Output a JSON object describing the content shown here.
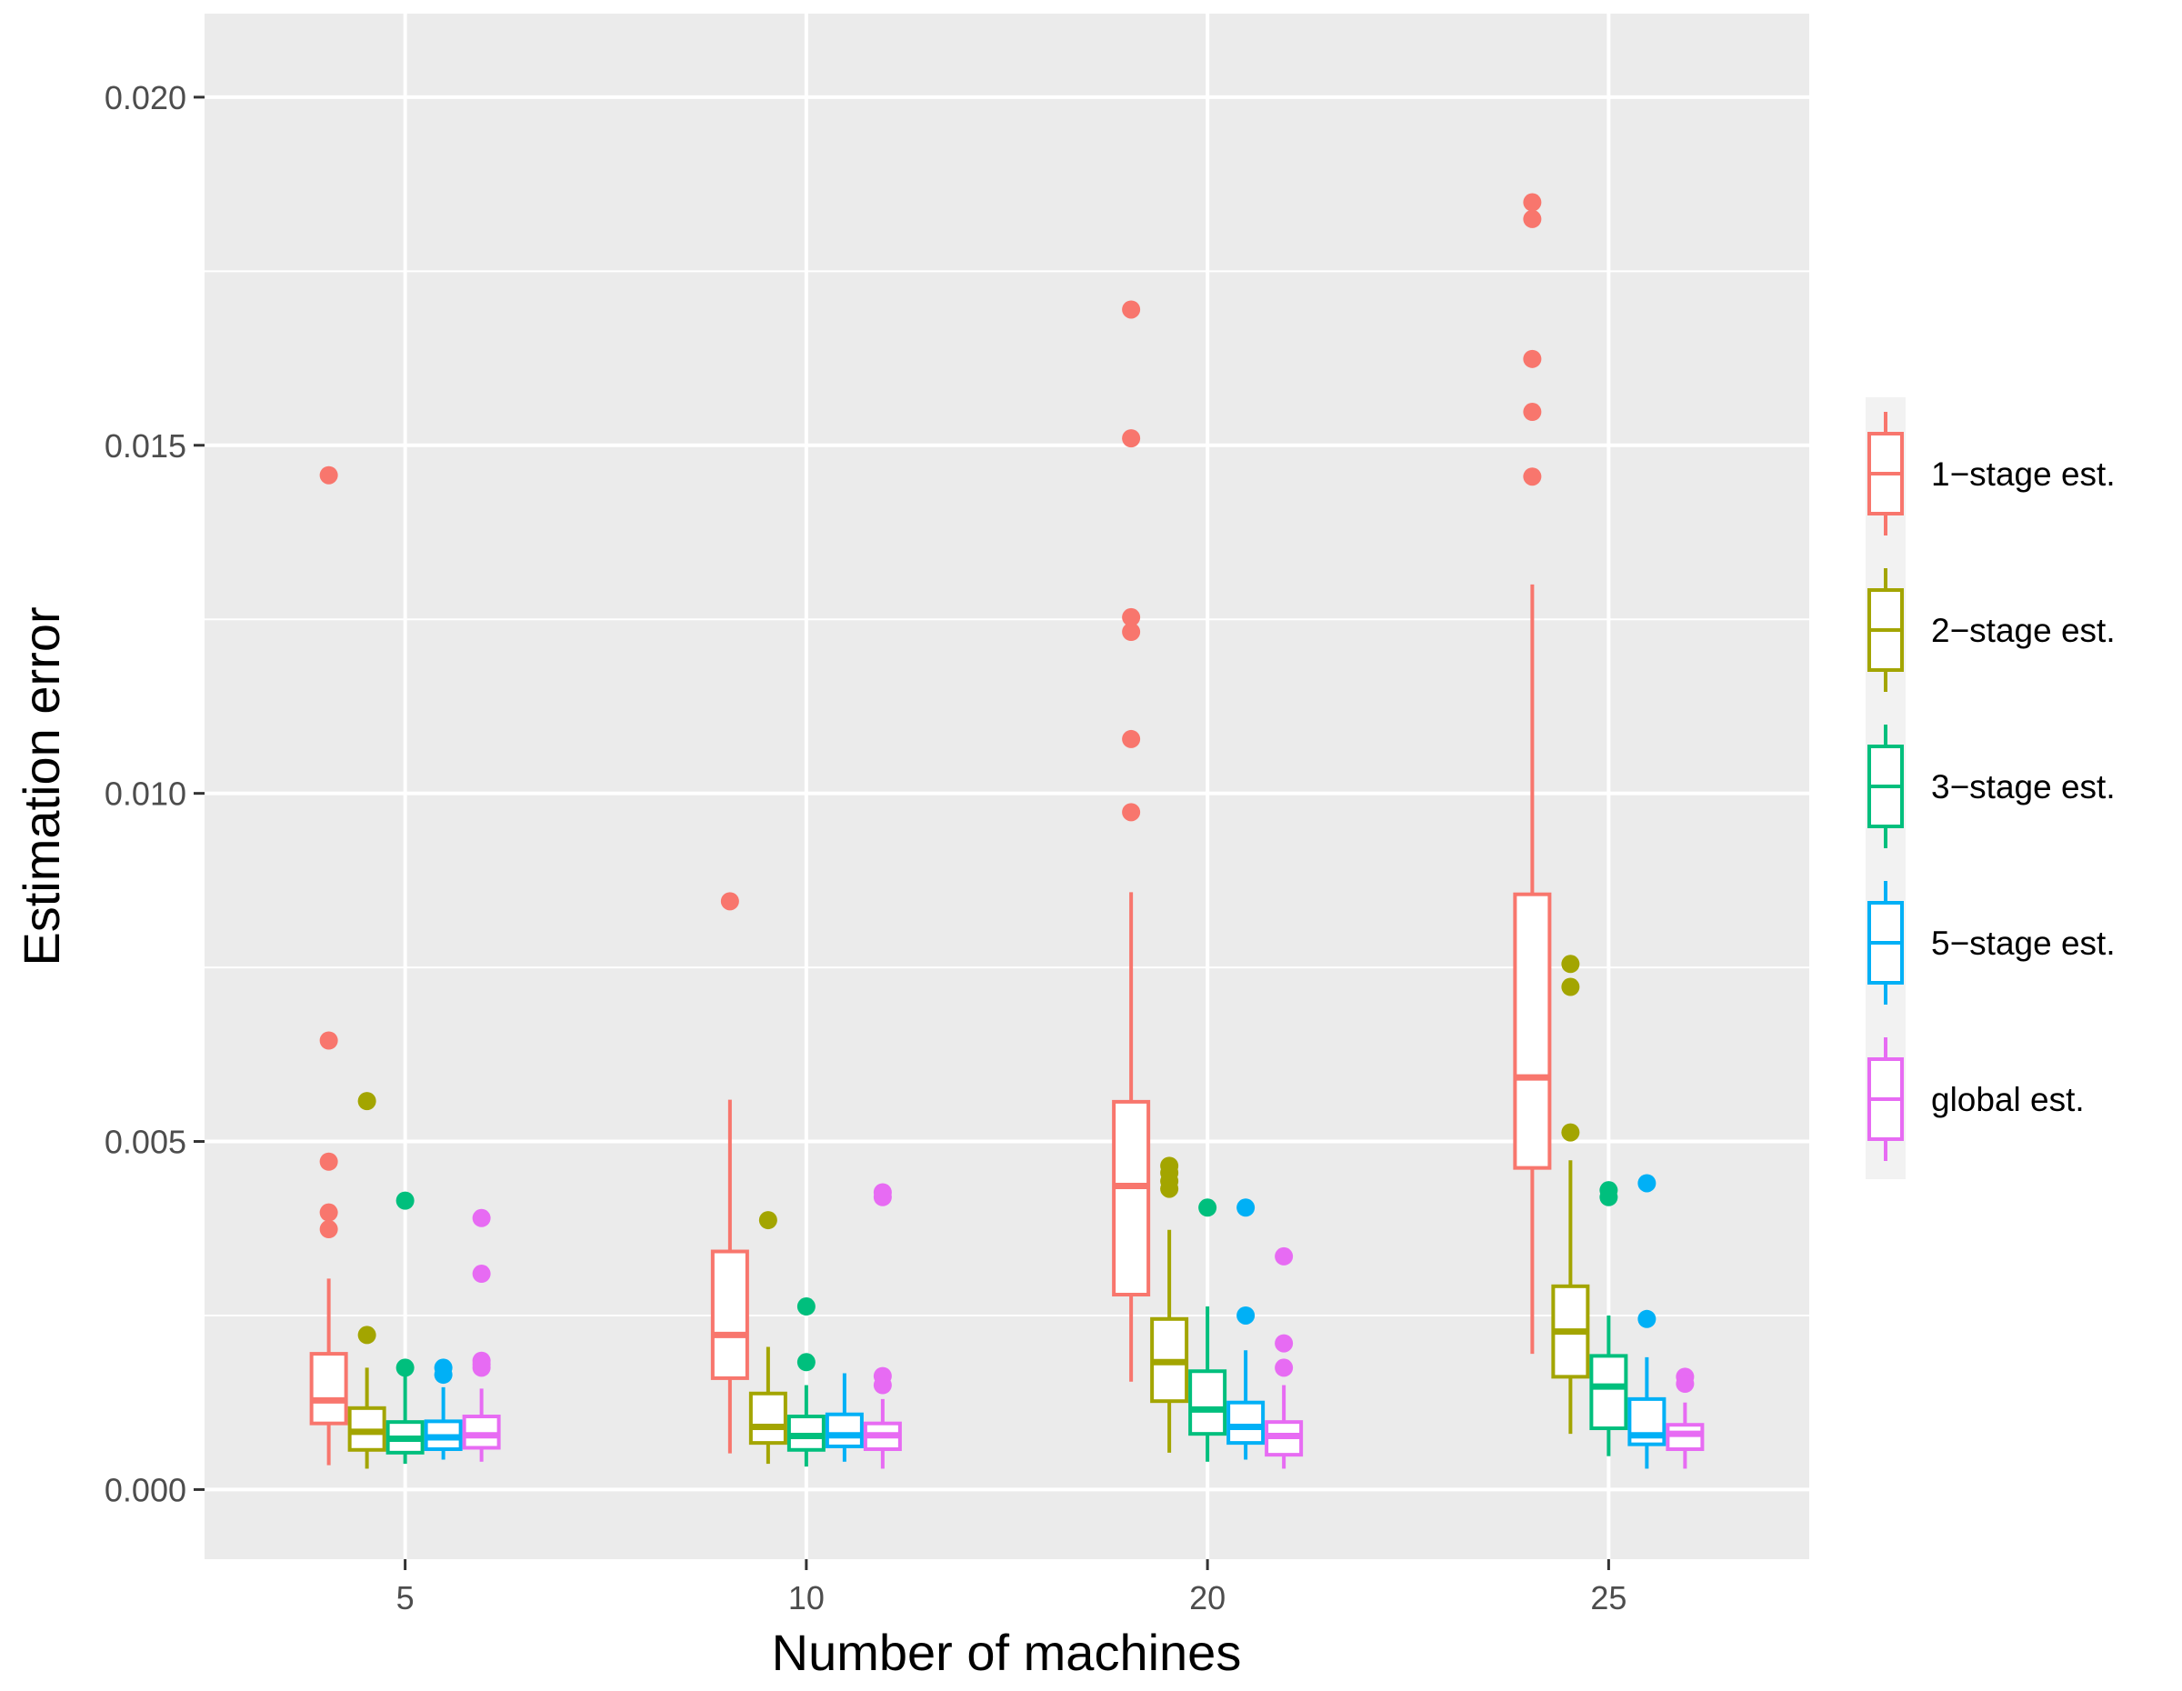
{
  "chart_data": {
    "type": "box",
    "title": "",
    "xlabel": "Number of machines",
    "ylabel": "Estimation error",
    "ylim": [
      -0.001,
      0.0212
    ],
    "y_ticks": [
      0.0,
      0.005,
      0.01,
      0.015,
      0.02
    ],
    "y_tick_labels": [
      "0.000",
      "0.005",
      "0.010",
      "0.015",
      "0.020"
    ],
    "categories": [
      "5",
      "10",
      "20",
      "25"
    ],
    "legend": {
      "position": "right"
    },
    "series": [
      {
        "name": "1−stage est.",
        "color": "#F8766D",
        "boxes": [
          {
            "lower_whisker": 0.00035,
            "q1": 0.00095,
            "median": 0.00128,
            "q3": 0.00195,
            "upper_whisker": 0.00303,
            "outliers": [
              0.01457,
              0.00645,
              0.00471,
              0.00398,
              0.00374
            ]
          },
          {
            "lower_whisker": 0.00052,
            "q1": 0.0016,
            "median": 0.00222,
            "q3": 0.00342,
            "upper_whisker": 0.0056,
            "outliers": [
              0.00845
            ]
          },
          {
            "lower_whisker": 0.00155,
            "q1": 0.0028,
            "median": 0.00436,
            "q3": 0.00557,
            "upper_whisker": 0.00858,
            "outliers": [
              0.01695,
              0.0151,
              0.01253,
              0.01232,
              0.01078,
              0.00973
            ]
          },
          {
            "lower_whisker": 0.00195,
            "q1": 0.00462,
            "median": 0.00592,
            "q3": 0.00855,
            "upper_whisker": 0.013,
            "outliers": [
              0.01849,
              0.01825,
              0.01624,
              0.01548,
              0.01455
            ]
          }
        ]
      },
      {
        "name": "2−stage est.",
        "color": "#A3A500",
        "boxes": [
          {
            "lower_whisker": 0.0003,
            "q1": 0.00057,
            "median": 0.00083,
            "q3": 0.00117,
            "upper_whisker": 0.00175,
            "outliers": [
              0.00558,
              0.00222
            ]
          },
          {
            "lower_whisker": 0.00037,
            "q1": 0.00067,
            "median": 0.0009,
            "q3": 0.00138,
            "upper_whisker": 0.00205,
            "outliers": [
              0.00387
            ]
          },
          {
            "lower_whisker": 0.00053,
            "q1": 0.00127,
            "median": 0.00183,
            "q3": 0.00245,
            "upper_whisker": 0.00373,
            "outliers": [
              0.00465,
              0.00455,
              0.00443,
              0.00432
            ]
          },
          {
            "lower_whisker": 0.0008,
            "q1": 0.00162,
            "median": 0.00227,
            "q3": 0.00292,
            "upper_whisker": 0.00473,
            "outliers": [
              0.00755,
              0.00722,
              0.00513
            ]
          }
        ]
      },
      {
        "name": "3−stage est.",
        "color": "#00BF7D",
        "boxes": [
          {
            "lower_whisker": 0.00037,
            "q1": 0.00053,
            "median": 0.00073,
            "q3": 0.00097,
            "upper_whisker": 0.00165,
            "outliers": [
              0.00415,
              0.00175
            ]
          },
          {
            "lower_whisker": 0.00033,
            "q1": 0.00057,
            "median": 0.00077,
            "q3": 0.00105,
            "upper_whisker": 0.0015,
            "outliers": [
              0.00263,
              0.00183
            ]
          },
          {
            "lower_whisker": 0.0004,
            "q1": 0.0008,
            "median": 0.00115,
            "q3": 0.0017,
            "upper_whisker": 0.00263,
            "outliers": [
              0.00405
            ]
          },
          {
            "lower_whisker": 0.00048,
            "q1": 0.00088,
            "median": 0.00148,
            "q3": 0.00192,
            "upper_whisker": 0.0025,
            "outliers": [
              0.0043,
              0.0042
            ]
          }
        ]
      },
      {
        "name": "5−stage est.",
        "color": "#00B0F6",
        "boxes": [
          {
            "lower_whisker": 0.00043,
            "q1": 0.00058,
            "median": 0.00075,
            "q3": 0.00098,
            "upper_whisker": 0.00147,
            "outliers": [
              0.00175,
              0.00165
            ]
          },
          {
            "lower_whisker": 0.0004,
            "q1": 0.00062,
            "median": 0.00078,
            "q3": 0.00108,
            "upper_whisker": 0.00167,
            "outliers": []
          },
          {
            "lower_whisker": 0.00043,
            "q1": 0.00067,
            "median": 0.0009,
            "q3": 0.00125,
            "upper_whisker": 0.002,
            "outliers": [
              0.00405,
              0.0025
            ]
          },
          {
            "lower_whisker": 0.0003,
            "q1": 0.00065,
            "median": 0.00078,
            "q3": 0.0013,
            "upper_whisker": 0.0019,
            "outliers": [
              0.0044,
              0.00245
            ]
          }
        ]
      },
      {
        "name": "global est.",
        "color": "#E76BF3",
        "boxes": [
          {
            "lower_whisker": 0.0004,
            "q1": 0.0006,
            "median": 0.00078,
            "q3": 0.00105,
            "upper_whisker": 0.00145,
            "outliers": [
              0.0039,
              0.0031,
              0.00185,
              0.0018,
              0.00175
            ]
          },
          {
            "lower_whisker": 0.0003,
            "q1": 0.00058,
            "median": 0.00078,
            "q3": 0.00095,
            "upper_whisker": 0.0013,
            "outliers": [
              0.00427,
              0.0042,
              0.00163,
              0.0015
            ]
          },
          {
            "lower_whisker": 0.0003,
            "q1": 0.0005,
            "median": 0.00077,
            "q3": 0.00097,
            "upper_whisker": 0.0015,
            "outliers": [
              0.00335,
              0.0021,
              0.00175
            ]
          },
          {
            "lower_whisker": 0.0003,
            "q1": 0.00058,
            "median": 0.0008,
            "q3": 0.00093,
            "upper_whisker": 0.00125,
            "outliers": [
              0.00162,
              0.00152
            ]
          }
        ]
      }
    ]
  }
}
